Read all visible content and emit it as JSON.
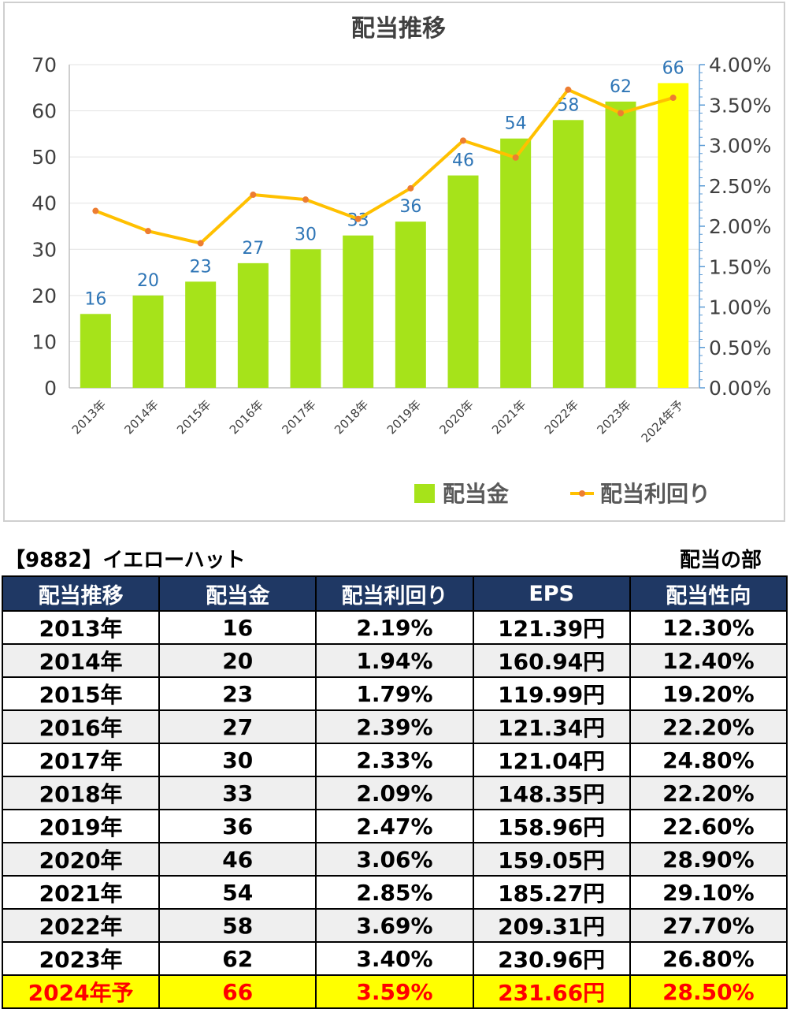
{
  "chart_data": {
    "type": "bar+line",
    "title": "配当推移",
    "categories": [
      "2013年",
      "2014年",
      "2015年",
      "2016年",
      "2017年",
      "2018年",
      "2019年",
      "2020年",
      "2021年",
      "2022年",
      "2023年",
      "2024年予"
    ],
    "series": [
      {
        "name": "配当金",
        "type": "bar",
        "axis": "left",
        "values": [
          16,
          20,
          23,
          27,
          30,
          33,
          36,
          46,
          54,
          58,
          62,
          66
        ],
        "color": "#a6e31a",
        "highlight_color": "#ffff00"
      },
      {
        "name": "配当利回り",
        "type": "line",
        "axis": "right",
        "values": [
          2.19,
          1.94,
          1.79,
          2.39,
          2.33,
          2.09,
          2.47,
          3.06,
          2.85,
          3.69,
          3.4,
          3.59
        ],
        "color": "#ffc000",
        "marker_color": "#ed7d31"
      }
    ],
    "ylim_left": [
      0,
      70
    ],
    "yticks_left": [
      "0",
      "10",
      "20",
      "30",
      "40",
      "50",
      "60",
      "70"
    ],
    "ylim_right": [
      0,
      4
    ],
    "yticks_right": [
      "0.00%",
      "0.50%",
      "1.00%",
      "1.50%",
      "2.00%",
      "2.50%",
      "3.00%",
      "3.50%",
      "4.00%"
    ],
    "data_label_color": "#2e75b6",
    "grid": true,
    "legend_position": "bottom-right"
  },
  "table": {
    "title": "【9882】イエローハット",
    "section": "配当の部",
    "headers": [
      "配当推移",
      "配当金",
      "配当利回り",
      "EPS",
      "配当性向"
    ],
    "rows": [
      [
        "2013年",
        "16",
        "2.19%",
        "121.39円",
        "12.30%"
      ],
      [
        "2014年",
        "20",
        "1.94%",
        "160.94円",
        "12.40%"
      ],
      [
        "2015年",
        "23",
        "1.79%",
        "119.99円",
        "19.20%"
      ],
      [
        "2016年",
        "27",
        "2.39%",
        "121.34円",
        "22.20%"
      ],
      [
        "2017年",
        "30",
        "2.33%",
        "121.04円",
        "24.80%"
      ],
      [
        "2018年",
        "33",
        "2.09%",
        "148.35円",
        "22.20%"
      ],
      [
        "2019年",
        "36",
        "2.47%",
        "158.96円",
        "22.60%"
      ],
      [
        "2020年",
        "46",
        "3.06%",
        "159.05円",
        "28.90%"
      ],
      [
        "2021年",
        "54",
        "2.85%",
        "185.27円",
        "29.10%"
      ],
      [
        "2022年",
        "58",
        "3.69%",
        "209.31円",
        "27.70%"
      ],
      [
        "2023年",
        "62",
        "3.40%",
        "230.96円",
        "26.80%"
      ],
      [
        "2024年予",
        "66",
        "3.59%",
        "231.66円",
        "28.50%"
      ]
    ]
  }
}
